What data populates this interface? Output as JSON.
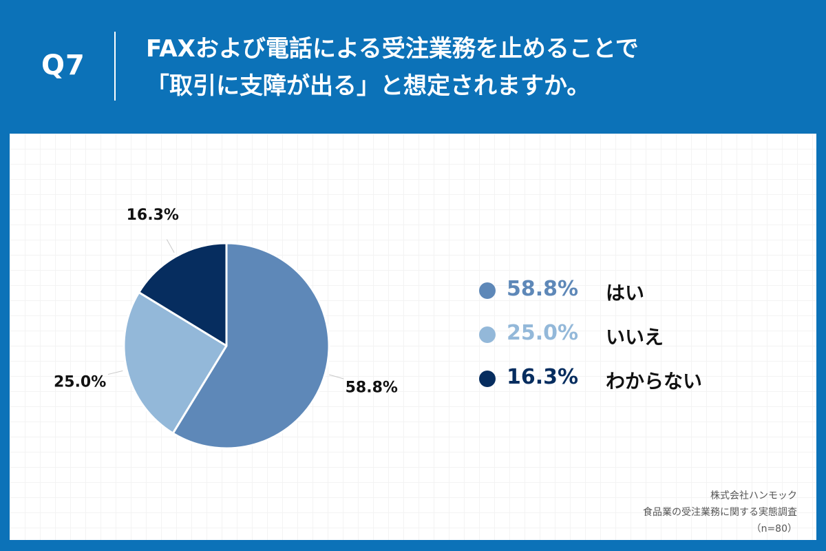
{
  "header": {
    "qnum": "Q7",
    "title_line1": "FAXおよび電話による受注業務を止めることで",
    "title_line2": "「取引に支障が出る」と想定されますか。"
  },
  "colors": {
    "background": "#0c72b8",
    "panel": "#ffffff",
    "slices": [
      "#5e88b8",
      "#93b8d9",
      "#062d5f"
    ]
  },
  "chart_data": {
    "type": "pie",
    "categories": [
      "はい",
      "いいえ",
      "わからない"
    ],
    "values": [
      58.8,
      25.0,
      16.3
    ],
    "labels": [
      "58.8%",
      "25.0%",
      "16.3%"
    ],
    "legend_position": "right"
  },
  "legend": [
    {
      "pct": "58.8%",
      "label": "はい"
    },
    {
      "pct": "25.0%",
      "label": "いいえ"
    },
    {
      "pct": "16.3%",
      "label": "わからない"
    }
  ],
  "credit": {
    "company": "株式会社ハンモック",
    "survey": "食品業の受注業務に関する実態調査",
    "n": "（n=80）"
  }
}
